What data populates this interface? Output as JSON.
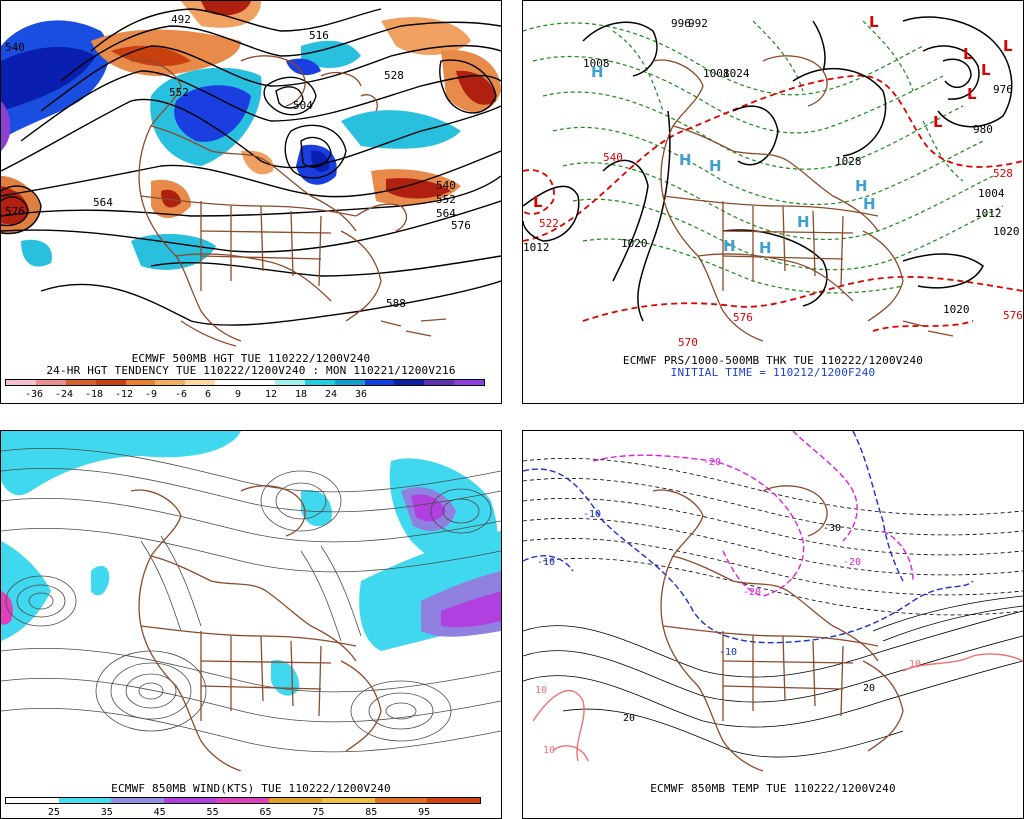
{
  "panels": {
    "top_left": {
      "line1": "ECMWF 500MB HGT TUE 110222/1200V240",
      "line2": "24-HR HGT TENDENCY TUE 110222/1200V240 : MON 110221/1200V216",
      "contour_labels": [
        "492",
        "504",
        "516",
        "528",
        "540",
        "552",
        "564",
        "576",
        "588",
        "540",
        "552",
        "564",
        "576"
      ],
      "colorbar": {
        "ticks": [
          "-36",
          "-24",
          "-18",
          "-12",
          "-9",
          "-6",
          "6",
          "9",
          "12",
          "18",
          "24",
          "36"
        ],
        "colors": [
          "#f7c0d0",
          "#e89090",
          "#d86030",
          "#c84010",
          "#e88030",
          "#f0b060",
          "#ffd8a0",
          "#ffffff",
          "#ffffff",
          "#a0f0f0",
          "#20d0e0",
          "#10a0d0",
          "#1040e0",
          "#1020a0",
          "#6030b0",
          "#9040e0"
        ]
      }
    },
    "top_right": {
      "line1": "ECMWF PRS/1000-500MB THK TUE 110222/1200V240",
      "line2": "INITIAL TIME = 110212/1200F240",
      "highs": [
        "H",
        "H",
        "H",
        "H",
        "H",
        "H",
        "H",
        "H"
      ],
      "lows": [
        "L",
        "L",
        "L",
        "L",
        "L",
        "L",
        "L"
      ],
      "isobar_labels": [
        "996",
        "1008",
        "1020",
        "1024",
        "1028",
        "1012",
        "1020",
        "1020",
        "980",
        "1004",
        "1012",
        "976",
        "992",
        "1008"
      ],
      "thickness_labels": [
        "540",
        "570",
        "576",
        "576",
        "528",
        "522"
      ]
    },
    "bottom_left": {
      "line1": "ECMWF 850MB WIND(KTS) TUE 110222/1200V240",
      "colorbar": {
        "ticks": [
          "25",
          "35",
          "45",
          "55",
          "65",
          "75",
          "85",
          "95"
        ],
        "colors": [
          "#ffffff",
          "#40e0f0",
          "#9090e0",
          "#b040e0",
          "#e040c0",
          "#e0a020",
          "#f0c040",
          "#e07020",
          "#d04010"
        ]
      }
    },
    "bottom_right": {
      "line1": "ECMWF 850MB TEMP TUE 110222/1200V240",
      "temp_labels": [
        "-10",
        "-10",
        "-20",
        "-20",
        "-30",
        "-20",
        "10",
        "10",
        "10",
        "-10",
        "20",
        "20"
      ]
    }
  },
  "colors": {
    "background": "#ffffff",
    "map_outline": "#8b4a2b",
    "contour": "#000000",
    "thickness_red": "#e00000",
    "thickness_green": "#1a8a1a",
    "pressure_high": "#3fa0d0",
    "pressure_low": "#e00000",
    "temp_blue": "#1a30d0",
    "temp_magenta": "#e020e0",
    "temp_pink": "#f07070",
    "caption_blue": "#1a3fd0"
  }
}
